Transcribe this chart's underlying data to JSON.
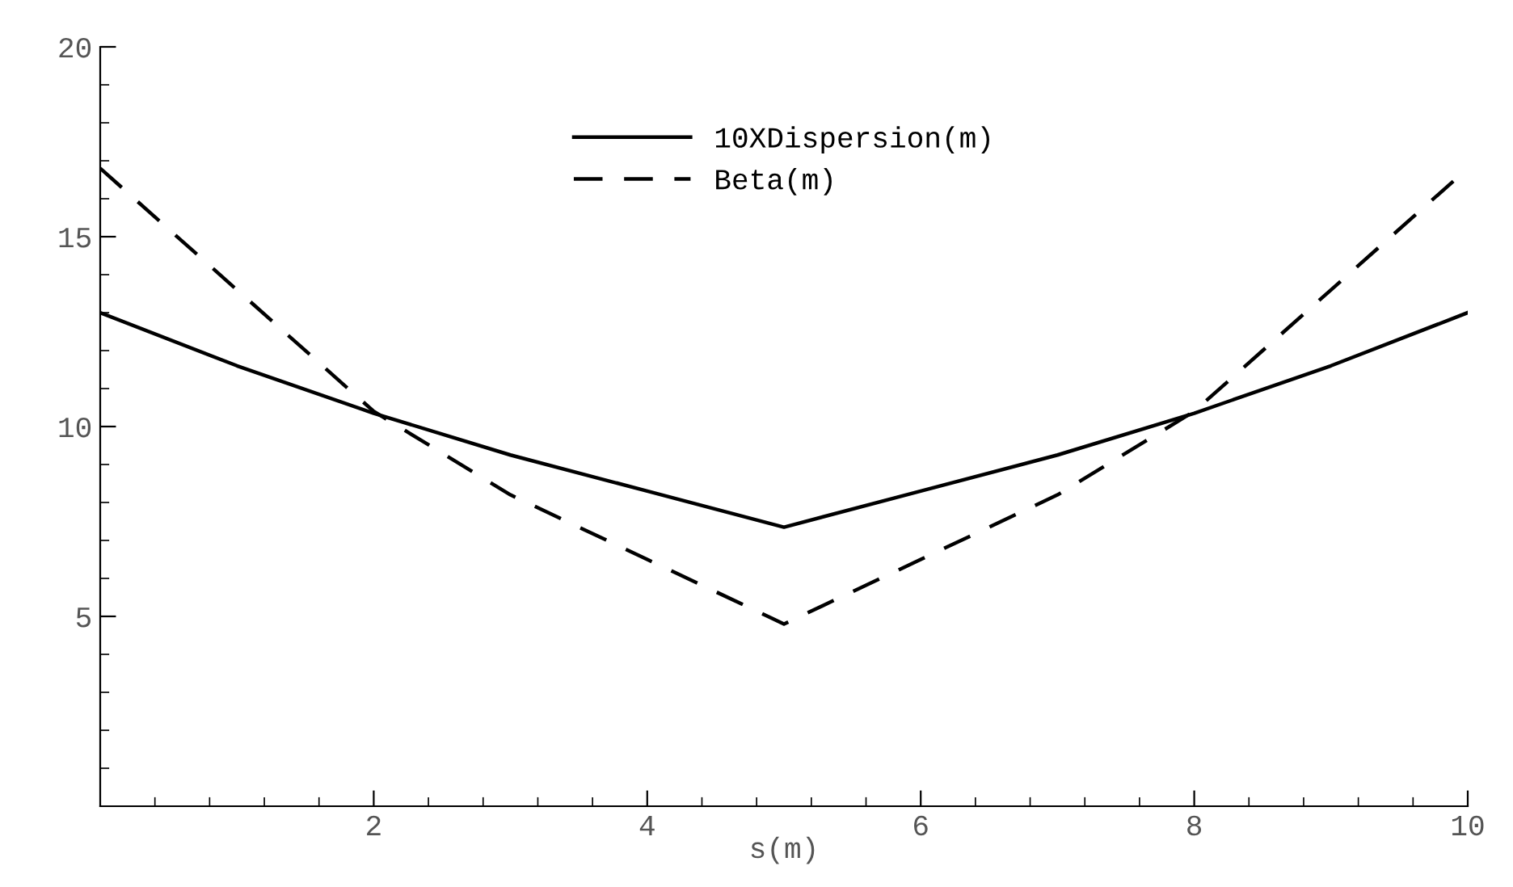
{
  "chart_data": {
    "type": "line",
    "xlabel": "s(m)",
    "x": [
      0,
      1,
      2,
      3,
      4,
      5,
      6,
      7,
      8,
      9,
      10
    ],
    "series": [
      {
        "name": "10XDispersion(m)",
        "color": "#000000",
        "line_style": "solid",
        "values": [
          13.0,
          11.6,
          10.35,
          9.25,
          8.3,
          7.35,
          8.3,
          9.25,
          10.35,
          11.6,
          13.0
        ]
      },
      {
        "name": "Beta(m)",
        "color": "#000000",
        "line_style": "dashed",
        "values": [
          16.8,
          13.6,
          10.4,
          8.2,
          6.5,
          4.8,
          6.5,
          8.2,
          10.4,
          13.6,
          16.8
        ]
      }
    ],
    "xlim": [
      0,
      10
    ],
    "ylim": [
      0,
      20
    ],
    "xticks": [
      2,
      4,
      6,
      8,
      10
    ],
    "yticks": [
      5,
      10,
      15,
      20
    ],
    "grid": false,
    "legend": "top",
    "marker": "none"
  }
}
